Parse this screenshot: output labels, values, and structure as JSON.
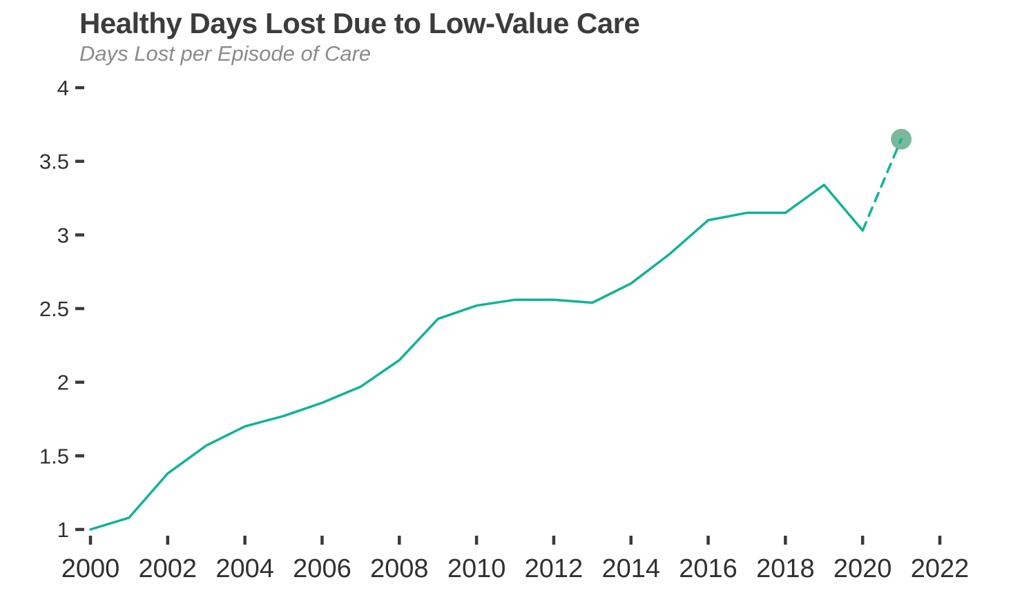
{
  "header": {
    "title": "Healthy Days Lost Due to Low-Value Care",
    "subtitle": "Days Lost per Episode of Care"
  },
  "chart_data": {
    "type": "line",
    "title": "Healthy Days Lost Due to Low-Value Care",
    "subtitle": "Days Lost per Episode of Care",
    "xlabel": "",
    "ylabel": "Days Lost per Episode of Care",
    "xlim": [
      2000,
      2022
    ],
    "ylim": [
      1,
      4
    ],
    "grid": false,
    "legend": "none",
    "x_tick_values": [
      2000,
      2002,
      2004,
      2006,
      2008,
      2010,
      2012,
      2014,
      2016,
      2018,
      2020,
      2022
    ],
    "x_tick_labels": [
      "2000",
      "2002",
      "2004",
      "2006",
      "2008",
      "2010",
      "2012",
      "2014",
      "2016",
      "2018",
      "2020",
      "2022"
    ],
    "y_tick_values": [
      1,
      1.5,
      2,
      2.5,
      3,
      3.5,
      4
    ],
    "y_tick_labels": [
      "1",
      "1.5",
      "2",
      "2.5",
      "3",
      "3.5",
      "4"
    ],
    "series": [
      {
        "name": "actual",
        "style": "solid",
        "x": [
          2000,
          2001,
          2002,
          2003,
          2004,
          2005,
          2006,
          2007,
          2008,
          2009,
          2010,
          2011,
          2012,
          2013,
          2014,
          2015,
          2016,
          2017,
          2018,
          2019,
          2020
        ],
        "values": [
          1.0,
          1.08,
          1.38,
          1.57,
          1.7,
          1.77,
          1.86,
          1.97,
          2.15,
          2.43,
          2.52,
          2.56,
          2.56,
          2.54,
          2.67,
          2.87,
          3.1,
          3.15,
          3.15,
          3.34,
          3.03
        ]
      },
      {
        "name": "projection",
        "style": "dashed",
        "x": [
          2020,
          2021
        ],
        "values": [
          3.03,
          3.65
        ],
        "endpoint_dot": true
      }
    ],
    "colors": {
      "line": "#12b296",
      "projection_dot": "#7bb89b",
      "tick": "#3a3a3a",
      "title": "#3c3c3c",
      "subtitle": "#8b8b8b"
    }
  }
}
